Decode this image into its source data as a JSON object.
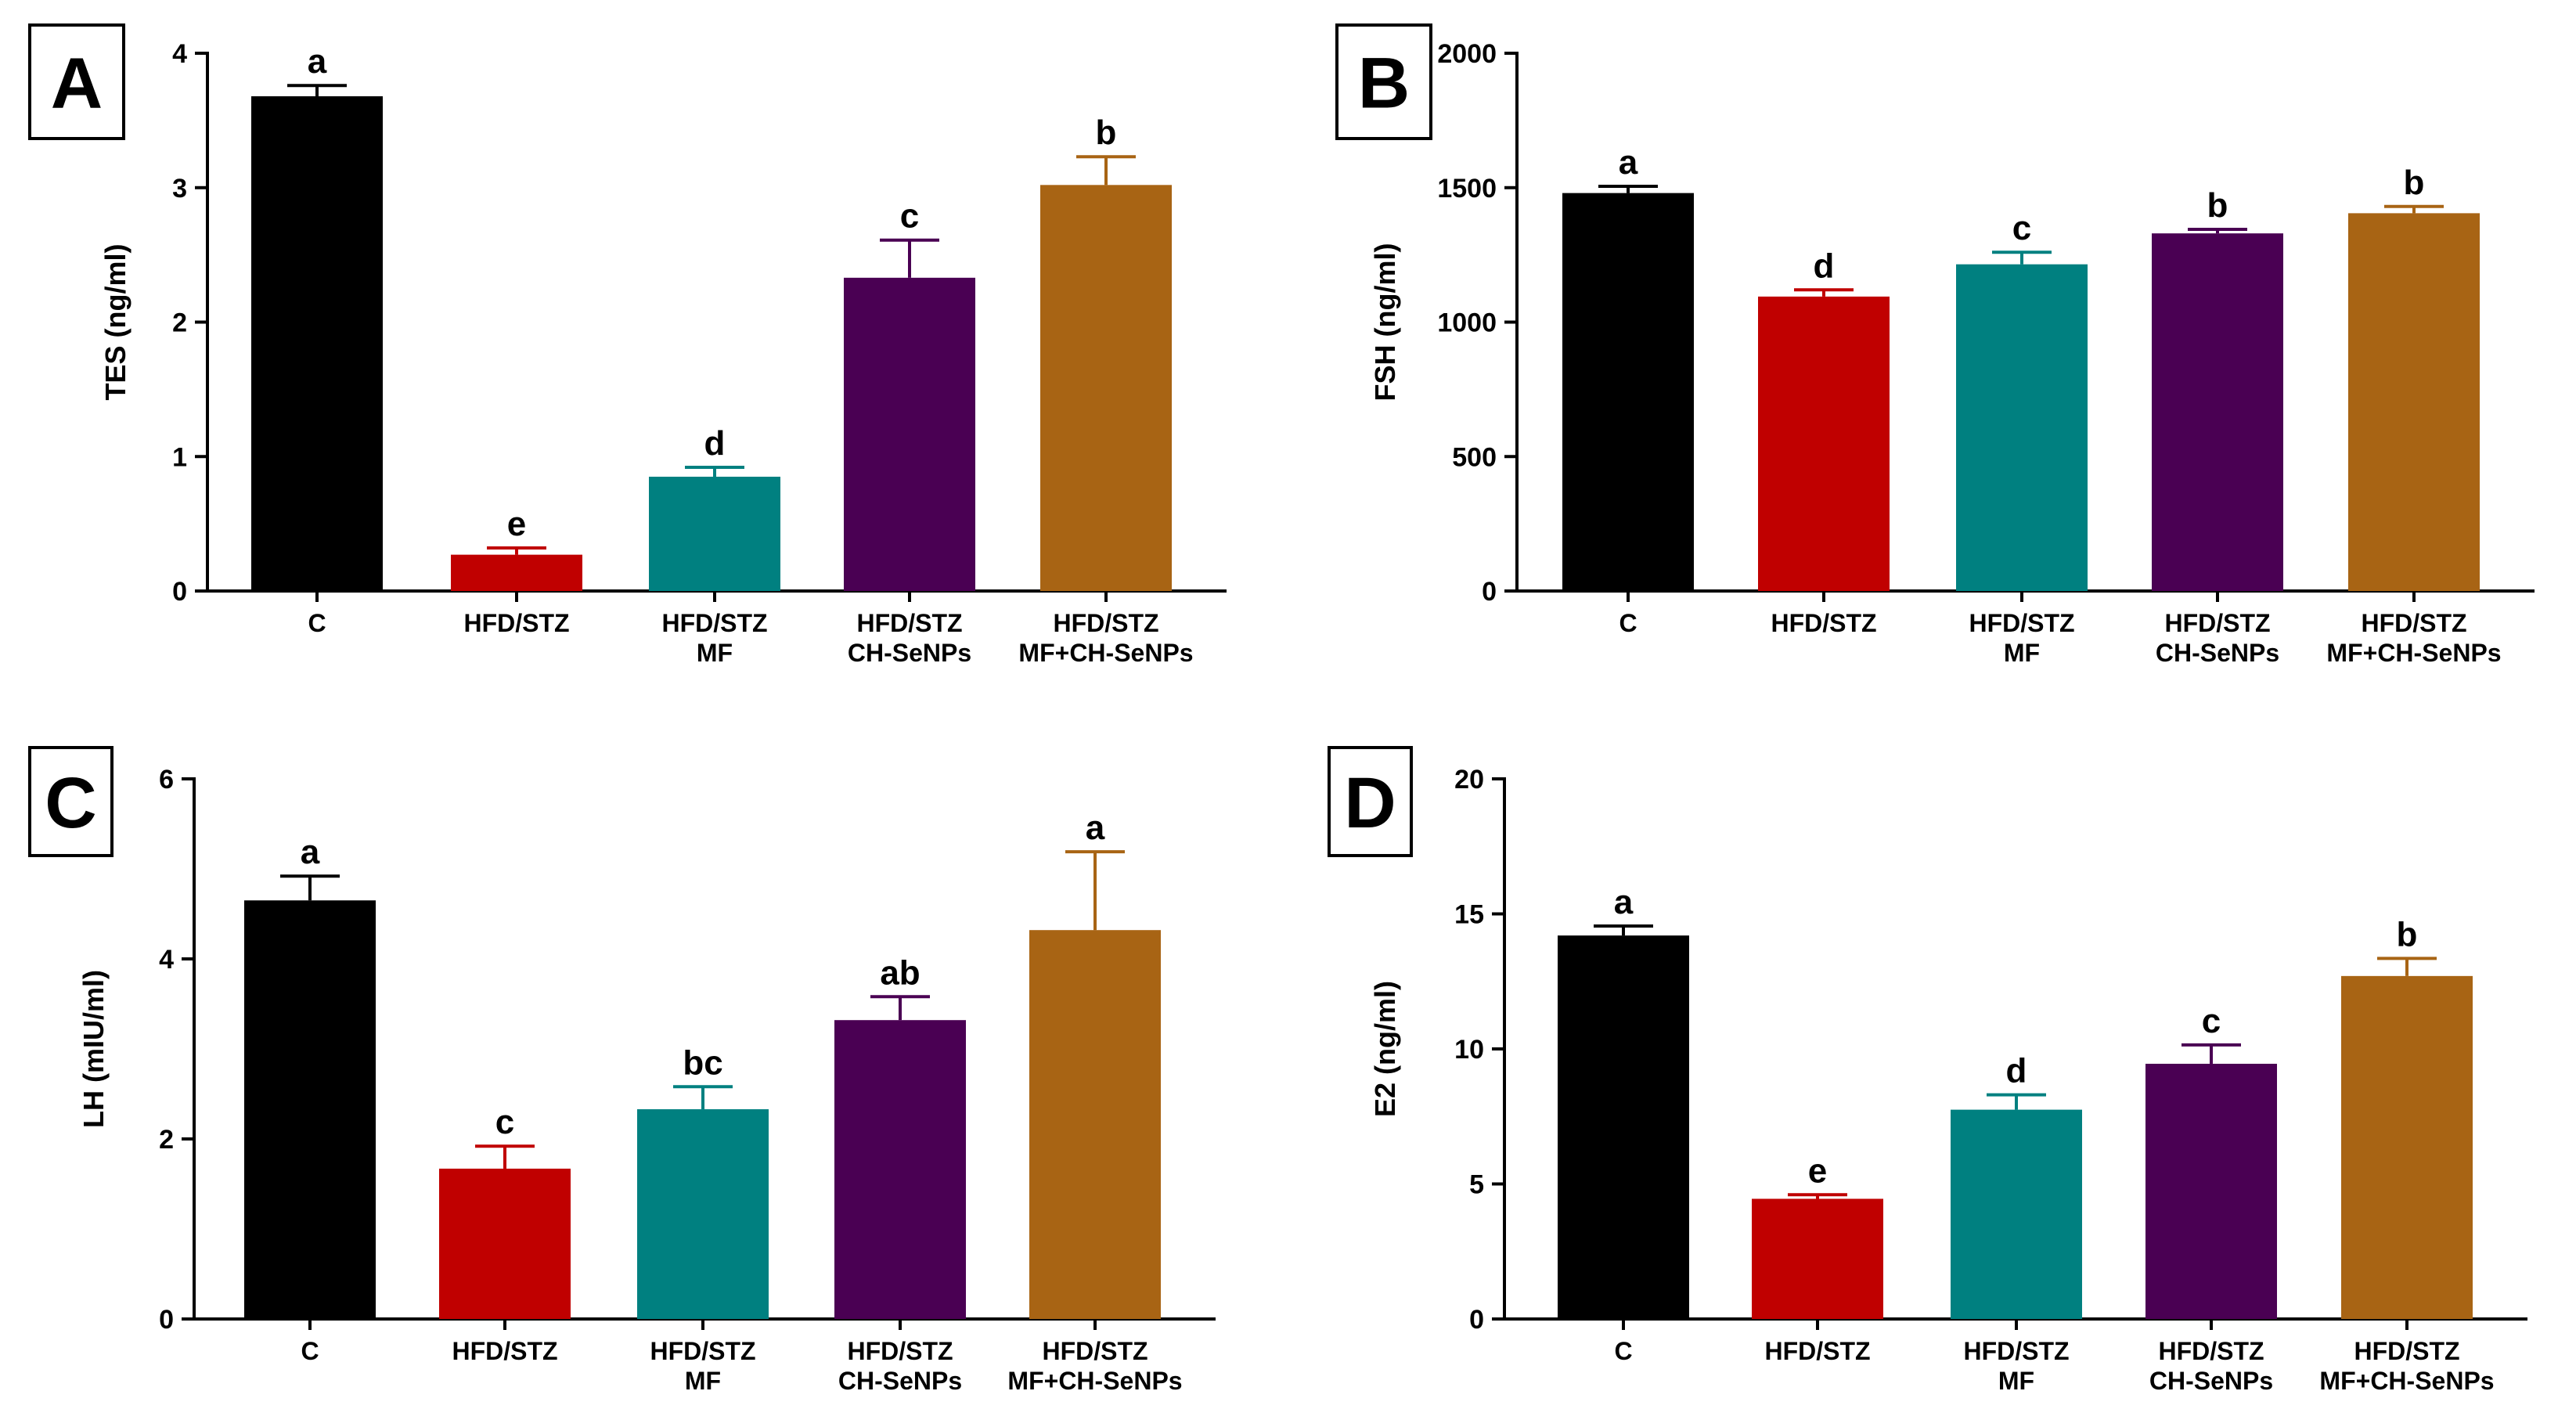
{
  "colors": [
    "#000000",
    "#c00000",
    "#008080",
    "#4a0053",
    "#a86414"
  ],
  "chart_data": [
    {
      "panel": "A",
      "type": "bar",
      "categories": [
        [
          "C"
        ],
        [
          "HFD/STZ"
        ],
        [
          "HFD/STZ",
          "MF"
        ],
        [
          "HFD/STZ",
          "CH-SeNPs"
        ],
        [
          "HFD/STZ",
          "MF+CH-SeNPs"
        ]
      ],
      "values": [
        3.68,
        0.27,
        0.85,
        2.33,
        3.02
      ],
      "errors": [
        0.08,
        0.05,
        0.07,
        0.28,
        0.21
      ],
      "labels": [
        "a",
        "e",
        "d",
        "c",
        "b"
      ],
      "ylabel": "TES (ng/ml)",
      "ylim": [
        0,
        4
      ],
      "yticks": [
        0,
        1,
        2,
        3,
        4
      ]
    },
    {
      "panel": "B",
      "type": "bar",
      "categories": [
        [
          "C"
        ],
        [
          "HFD/STZ"
        ],
        [
          "HFD/STZ",
          "MF"
        ],
        [
          "HFD/STZ",
          "CH-SeNPs"
        ],
        [
          "HFD/STZ",
          "MF+CH-SeNPs"
        ]
      ],
      "values": [
        1480,
        1095,
        1215,
        1330,
        1405
      ],
      "errors": [
        25,
        25,
        45,
        15,
        25
      ],
      "labels": [
        "a",
        "d",
        "c",
        "b",
        "b"
      ],
      "ylabel": "FSH (ng/ml)",
      "ylim": [
        0,
        2000
      ],
      "yticks": [
        0,
        500,
        1000,
        1500,
        2000
      ]
    },
    {
      "panel": "C",
      "type": "bar",
      "categories": [
        [
          "C"
        ],
        [
          "HFD/STZ"
        ],
        [
          "HFD/STZ",
          "MF"
        ],
        [
          "HFD/STZ",
          "CH-SeNPs"
        ],
        [
          "HFD/STZ",
          "MF+CH-SeNPs"
        ]
      ],
      "values": [
        4.65,
        1.67,
        2.33,
        3.32,
        4.32
      ],
      "errors": [
        0.27,
        0.25,
        0.25,
        0.26,
        0.87
      ],
      "labels": [
        "a",
        "c",
        "bc",
        "ab",
        "a"
      ],
      "ylabel": "LH (mIU/ml)",
      "ylim": [
        0,
        6
      ],
      "yticks": [
        0,
        2,
        4,
        6
      ]
    },
    {
      "panel": "D",
      "type": "bar",
      "categories": [
        [
          "C"
        ],
        [
          "HFD/STZ"
        ],
        [
          "HFD/STZ",
          "MF"
        ],
        [
          "HFD/STZ",
          "CH-SeNPs"
        ],
        [
          "HFD/STZ",
          "MF+CH-SeNPs"
        ]
      ],
      "values": [
        14.2,
        4.45,
        7.75,
        9.45,
        12.7
      ],
      "errors": [
        0.35,
        0.15,
        0.55,
        0.7,
        0.65
      ],
      "labels": [
        "a",
        "e",
        "d",
        "c",
        "b"
      ],
      "ylabel": "E2 (ng/ml)",
      "ylim": [
        0,
        20
      ],
      "yticks": [
        0,
        5,
        10,
        15,
        20
      ]
    }
  ]
}
